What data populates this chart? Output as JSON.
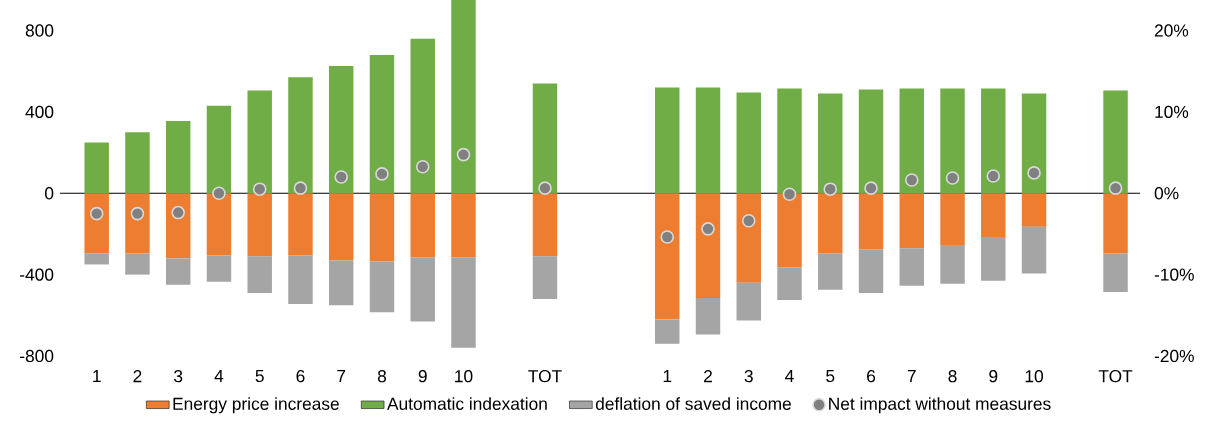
{
  "chart_data": {
    "type": "bar",
    "stacked": true,
    "categories": [
      "1",
      "2",
      "3",
      "4",
      "5",
      "6",
      "7",
      "8",
      "9",
      "10",
      null,
      "TOT",
      null,
      null,
      "1",
      "2",
      "3",
      "4",
      "5",
      "6",
      "7",
      "8",
      "9",
      "10",
      null,
      "TOT"
    ],
    "series": [
      {
        "name": "Energy price increase",
        "color": "#ed7d31",
        "values": [
          -295,
          -295,
          -320,
          -305,
          -310,
          -305,
          -330,
          -335,
          -315,
          -315,
          null,
          -310,
          null,
          null,
          -620,
          -515,
          -440,
          -365,
          -295,
          -275,
          -270,
          -255,
          -215,
          -165,
          null,
          -295
        ]
      },
      {
        "name": "Automatic indexation",
        "color": "#70ad47",
        "values": [
          250,
          300,
          355,
          430,
          505,
          570,
          625,
          680,
          760,
          950,
          null,
          540,
          null,
          null,
          520,
          520,
          495,
          515,
          490,
          510,
          515,
          515,
          515,
          490,
          null,
          505
        ]
      },
      {
        "name": "deflation of saved income",
        "color": "#a5a5a5",
        "values": [
          -55,
          -105,
          -130,
          -130,
          -180,
          -240,
          -220,
          -250,
          -315,
          -445,
          null,
          -210,
          null,
          null,
          -120,
          -180,
          -185,
          -160,
          -180,
          -215,
          -185,
          -190,
          -215,
          -230,
          null,
          -190
        ]
      },
      {
        "name": "Net impact without measures",
        "type": "scatter",
        "color": "#808080",
        "values": [
          -100,
          -100,
          -95,
          0,
          20,
          25,
          80,
          95,
          130,
          190,
          null,
          25,
          null,
          null,
          -215,
          -175,
          -135,
          -5,
          20,
          25,
          65,
          75,
          85,
          100,
          null,
          25
        ]
      }
    ],
    "ylim": [
      -800,
      950
    ],
    "yticks": [
      -800,
      -400,
      0,
      400,
      800
    ],
    "y2lim": [
      -20,
      23.75
    ],
    "y2ticks": [
      {
        "value": -20,
        "label": "-20%"
      },
      {
        "value": -10,
        "label": "-10%"
      },
      {
        "value": 0,
        "label": "0%"
      },
      {
        "value": 10,
        "label": "10%"
      },
      {
        "value": 20,
        "label": "20%"
      }
    ],
    "legend": "bottom"
  }
}
